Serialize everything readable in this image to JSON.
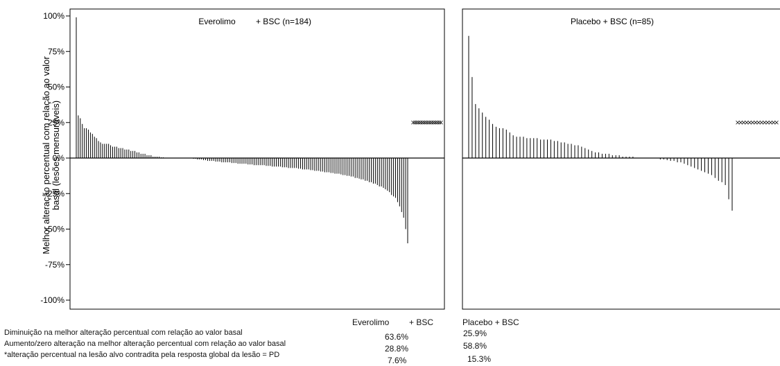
{
  "chart_data": {
    "type": "bar",
    "ylabel": "Melhor alteração percentual com relação ao valor basal (lesões mensuráveis)",
    "ylim": [
      -100,
      100
    ],
    "yticks": [
      "100%",
      "75%",
      "50%",
      "25%",
      "0%",
      "-25%",
      "-50%",
      "-75%",
      "-100%"
    ],
    "grid": false,
    "marker_note": "x markers plotted at 25% for patients with target lesion change contradicted by global lesion response (PD)",
    "panels": [
      {
        "title_part1": "Everolimo",
        "title_part2": "+ BSC (n=184)",
        "n": 184,
        "series": [
          {
            "values": [
              99,
              30,
              28,
              24,
              21,
              21,
              20,
              18,
              17,
              15,
              14,
              12,
              11,
              10,
              10,
              10,
              10,
              9,
              8,
              8,
              8,
              7,
              7,
              7,
              6,
              6,
              6,
              5,
              5,
              5,
              4,
              4,
              3,
              3,
              3,
              2,
              2,
              2,
              1,
              1,
              1,
              1,
              0.5,
              0.5,
              0,
              0,
              0,
              0,
              0,
              0,
              0,
              0,
              0,
              0,
              0,
              0,
              0,
              0,
              -0.5,
              -0.5,
              -1,
              -1,
              -1,
              -1.5,
              -1.5,
              -2,
              -2,
              -2,
              -2,
              -2.5,
              -2.5,
              -2.5,
              -3,
              -3,
              -3,
              -3,
              -3,
              -3.5,
              -3.5,
              -3.5,
              -4,
              -4,
              -4,
              -4,
              -4,
              -4.5,
              -4.5,
              -4.5,
              -5,
              -5,
              -5,
              -5,
              -5,
              -5,
              -5.5,
              -5.5,
              -5.5,
              -6,
              -6,
              -6,
              -6,
              -6,
              -6.5,
              -6.5,
              -6.5,
              -7,
              -7,
              -7,
              -7,
              -7,
              -7.5,
              -7.5,
              -8,
              -8,
              -8,
              -8,
              -8.5,
              -8.5,
              -9,
              -9,
              -9,
              -9.5,
              -9.5,
              -10,
              -10,
              -10,
              -10.5,
              -10.5,
              -11,
              -11,
              -11,
              -11.5,
              -12,
              -12,
              -12.5,
              -12.5,
              -13,
              -13,
              -14,
              -14,
              -14.5,
              -15,
              -15,
              -16,
              -16,
              -17,
              -17,
              -18,
              -18,
              -19,
              -20,
              -20,
              -21,
              -22,
              -23,
              -24,
              -26,
              -27,
              -28,
              -31,
              -34,
              -38,
              -42,
              -50,
              -60
            ],
            "pd_marker_count": 16
          }
        ]
      },
      {
        "title": "Placebo + BSC (n=85)",
        "n": 85,
        "series": [
          {
            "values": [
              86,
              57,
              38,
              35,
              32,
              29,
              27,
              24,
              22,
              21,
              21,
              20,
              18,
              16,
              15,
              15,
              15,
              14,
              14,
              14,
              14,
              13,
              13,
              13,
              13,
              12,
              12,
              11,
              11,
              10,
              10,
              9,
              9,
              8,
              7,
              6,
              5,
              4,
              4,
              3,
              3,
              3,
              2,
              2,
              2,
              1,
              1,
              1,
              1,
              0,
              0,
              0,
              0,
              0,
              0,
              0,
              -1,
              -1,
              -1.5,
              -2,
              -2,
              -3,
              -3,
              -4,
              -5,
              -6,
              -7,
              -8,
              -9,
              -10,
              -11,
              -12,
              -14,
              -16,
              -17,
              -19,
              -29,
              -37
            ],
            "pd_marker_count": 14
          }
        ]
      }
    ]
  },
  "summary": {
    "header_everolimus_part1": "Everolimo",
    "header_everolimus_part2": "+ BSC",
    "header_placebo": "Placebo + BSC",
    "rows": [
      {
        "label": "Diminuição na melhor alteração percentual com relação ao valor basal",
        "everolimus": "63.6%",
        "placebo": "25.9%"
      },
      {
        "label": "Aumento/zero alteração na melhor alteração percentual com relação ao valor basal",
        "everolimus": "28.8%",
        "placebo": "58.8%"
      },
      {
        "label": "*alteração percentual na lesão alvo contradita pela resposta global da lesão = PD",
        "everolimus": "7.6%",
        "placebo": "15.3%"
      }
    ]
  }
}
